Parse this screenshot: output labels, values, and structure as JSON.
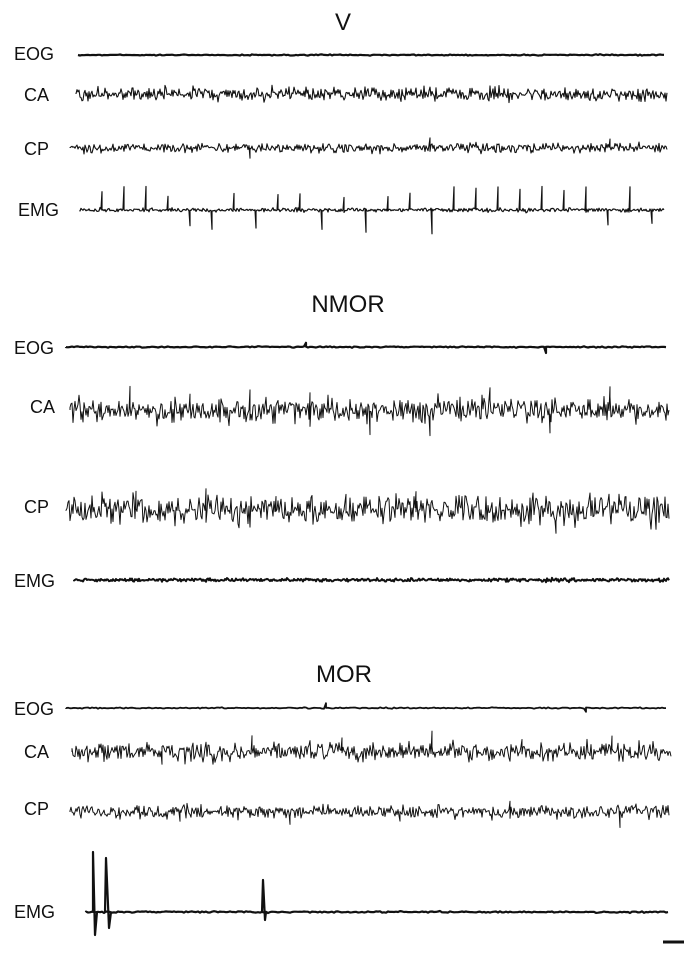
{
  "panels": [
    {
      "title": "V",
      "channels": [
        "EOG",
        "CA",
        "CP",
        "EMG"
      ]
    },
    {
      "title": "NMOR",
      "channels": [
        "EOG",
        "CA",
        "CP",
        "EMG"
      ]
    },
    {
      "title": "MOR",
      "channels": [
        "EOG",
        "CA",
        "CP",
        "EMG"
      ]
    }
  ],
  "colors": {
    "trace": "#111111",
    "background": "#ffffff"
  }
}
